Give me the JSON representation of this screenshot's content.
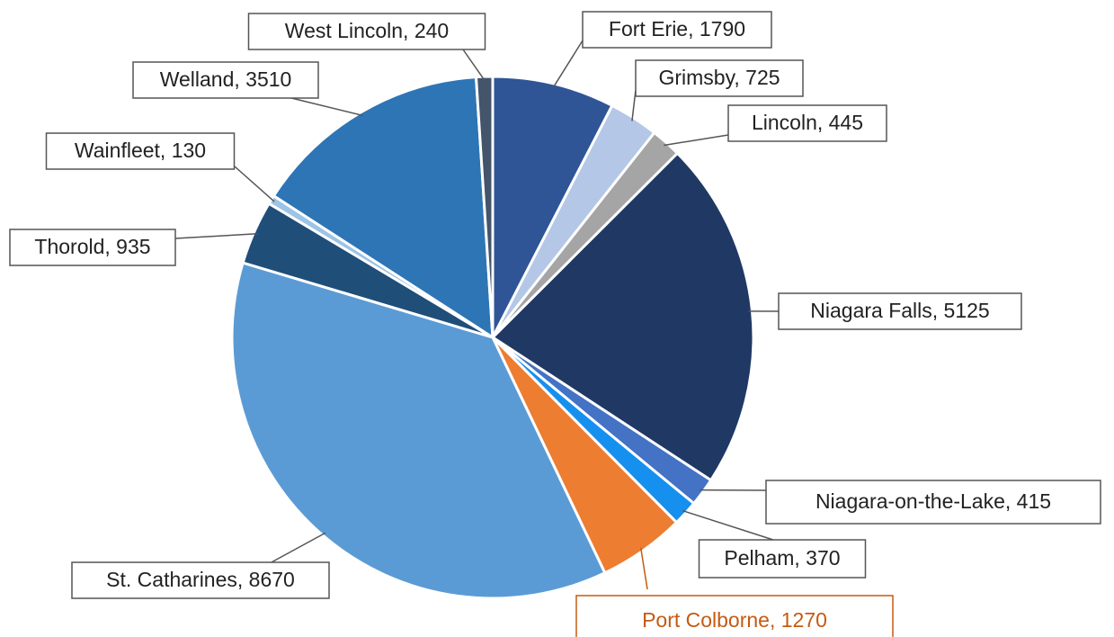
{
  "chart_data": {
    "type": "pie",
    "values": [
      1790,
      725,
      445,
      5125,
      415,
      370,
      1270,
      8670,
      935,
      130,
      3510,
      240
    ],
    "value_labels": [
      "Fort Erie, 1790",
      "Grimsby, 725",
      "Lincoln, 445",
      "Niagara Falls, 5125",
      "Niagara-on-the-Lake, 415",
      "Pelham, 370",
      "Port Colborne, 1270",
      "St. Catharines, 8670",
      "Thorold, 935",
      "Wainfleet, 130",
      "Welland, 3510",
      "West Lincoln, 240"
    ],
    "colors": [
      "#2f5597",
      "#b4c7e7",
      "#a5a5a5",
      "#203864",
      "#4472c4",
      "#1590ef",
      "#ed7d31",
      "#5b9bd5",
      "#1f4e79",
      "#9dc3e6",
      "#2e75b6",
      "#44546a"
    ]
  }
}
